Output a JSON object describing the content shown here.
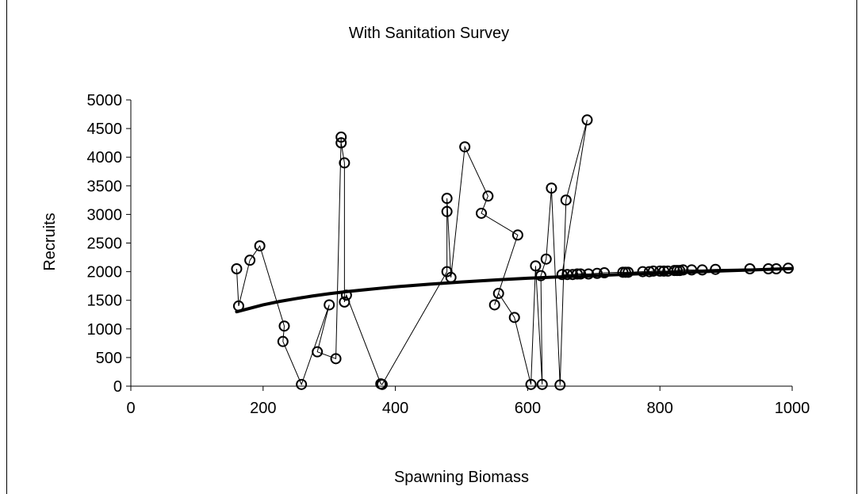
{
  "chart_data": {
    "type": "scatter",
    "title": "With Sanitation Survey",
    "xlabel": "Spawning Biomass",
    "ylabel": "Recruits",
    "xlim": [
      0,
      1000
    ],
    "ylim": [
      0,
      5000
    ],
    "xticks": [
      0,
      200,
      400,
      600,
      800,
      1000
    ],
    "yticks": [
      0,
      500,
      1000,
      1500,
      2000,
      2500,
      3000,
      3500,
      4000,
      4500,
      5000
    ],
    "grid": false,
    "legend": "none",
    "colors": {
      "line": "#000000",
      "marker": "#000000",
      "curve": "#000000"
    },
    "series": [
      {
        "style": "observed-connected-circles",
        "points": [
          [
            160,
            2050
          ],
          [
            163,
            1400
          ],
          [
            180,
            2200
          ],
          [
            195,
            2450
          ],
          [
            232,
            1050
          ],
          [
            230,
            780
          ],
          [
            258,
            30
          ],
          [
            300,
            1420
          ],
          [
            282,
            600
          ],
          [
            310,
            480
          ],
          [
            318,
            4350
          ],
          [
            318,
            4250
          ],
          [
            323,
            3900
          ],
          [
            323,
            1470
          ],
          [
            326,
            1590
          ],
          [
            378,
            40
          ],
          [
            380,
            30
          ],
          [
            478,
            2000
          ],
          [
            478,
            3050
          ],
          [
            478,
            3280
          ],
          [
            484,
            1900
          ],
          [
            505,
            4180
          ],
          [
            540,
            3320
          ],
          [
            530,
            3020
          ],
          [
            585,
            2640
          ],
          [
            550,
            1420
          ],
          [
            556,
            1620
          ],
          [
            580,
            1200
          ],
          [
            605,
            30
          ],
          [
            612,
            2100
          ],
          [
            622,
            30
          ],
          [
            620,
            1930
          ],
          [
            628,
            2220
          ],
          [
            636,
            3460
          ],
          [
            649,
            20
          ],
          [
            658,
            3250
          ],
          [
            690,
            4650
          ],
          [
            652,
            1950
          ],
          [
            660,
            1950
          ],
          [
            668,
            1950
          ],
          [
            675,
            1960
          ],
          [
            680,
            1960
          ],
          [
            692,
            1960
          ],
          [
            705,
            1970
          ],
          [
            716,
            1980
          ],
          [
            744,
            1990
          ],
          [
            748,
            1990
          ],
          [
            752,
            1990
          ],
          [
            774,
            2000
          ],
          [
            784,
            2000
          ],
          [
            790,
            2010
          ],
          [
            800,
            2010
          ],
          [
            806,
            2010
          ],
          [
            812,
            2010
          ],
          [
            822,
            2020
          ],
          [
            826,
            2020
          ],
          [
            830,
            2020
          ],
          [
            835,
            2030
          ],
          [
            848,
            2030
          ],
          [
            864,
            2030
          ],
          [
            884,
            2040
          ],
          [
            936,
            2050
          ],
          [
            964,
            2050
          ],
          [
            976,
            2050
          ],
          [
            994,
            2060
          ]
        ]
      },
      {
        "style": "fitted-curve",
        "x": [
          160,
          180,
          200,
          225,
          250,
          275,
          300,
          325,
          350,
          375,
          400,
          450,
          500,
          550,
          600,
          650,
          700,
          750,
          800,
          850,
          900,
          950,
          1000
        ],
        "values": [
          1300,
          1360,
          1420,
          1480,
          1530,
          1575,
          1615,
          1650,
          1680,
          1708,
          1735,
          1780,
          1820,
          1855,
          1885,
          1910,
          1930,
          1955,
          1975,
          1995,
          2015,
          2035,
          2055
        ]
      }
    ]
  }
}
